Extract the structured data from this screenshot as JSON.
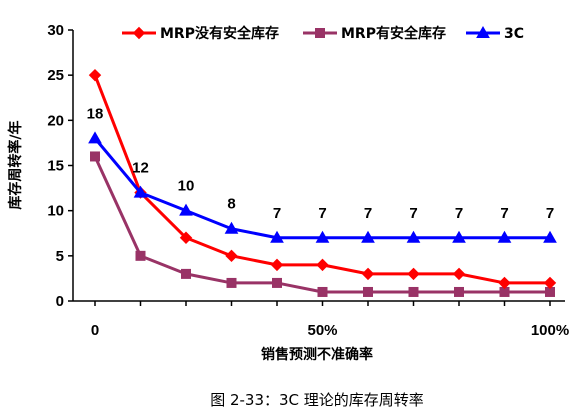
{
  "chart_data": {
    "type": "line",
    "x": [
      0,
      10,
      20,
      30,
      40,
      50,
      60,
      70,
      80,
      90,
      100
    ],
    "x_tick_labels": [
      {
        "x": 0,
        "label": "0"
      },
      {
        "x": 50,
        "label": "50%"
      },
      {
        "x": 100,
        "label": "100%"
      }
    ],
    "xlabel": "销售预测不准确率",
    "ylabel": "库存周转率/年",
    "ylim": [
      0,
      30
    ],
    "y_ticks": [
      0,
      5,
      10,
      15,
      20,
      25,
      30
    ],
    "grid": false,
    "legend_position": "top",
    "series": [
      {
        "name": "MRP没有安全库存",
        "color": "#ff0000",
        "marker": "diamond",
        "values": [
          25,
          12,
          7,
          5,
          4,
          4,
          3,
          3,
          3,
          2,
          2
        ]
      },
      {
        "name": "MRP有安全库存",
        "color": "#993366",
        "marker": "square",
        "values": [
          16,
          5,
          3,
          2,
          2,
          1,
          1,
          1,
          1,
          1,
          1
        ]
      },
      {
        "name": "3C",
        "color": "#0000ff",
        "marker": "triangle",
        "values": [
          18,
          12,
          10,
          8,
          7,
          7,
          7,
          7,
          7,
          7,
          7
        ],
        "data_labels": [
          "18",
          "12",
          "10",
          "8",
          "7",
          "7",
          "7",
          "7",
          "7",
          "7",
          "7"
        ]
      }
    ]
  },
  "caption": "图 2-33：3C 理论的库存周转率"
}
